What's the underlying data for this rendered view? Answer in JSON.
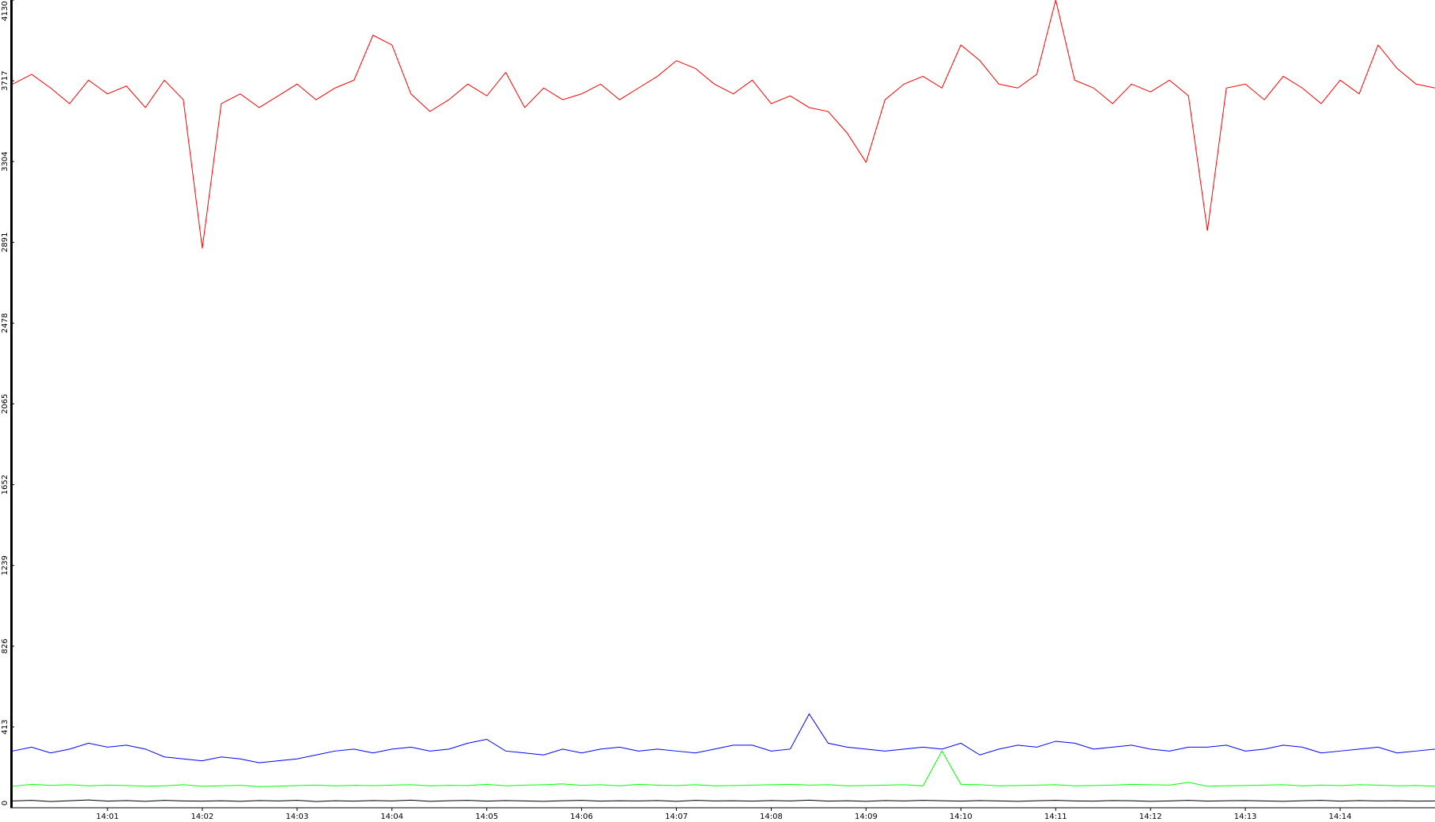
{
  "chart_data": {
    "type": "line",
    "x": [
      0,
      0.2,
      0.4,
      0.6,
      0.8,
      1,
      1.2,
      1.4,
      1.6,
      1.8,
      2,
      2.2,
      2.4,
      2.6,
      2.8,
      3,
      3.2,
      3.4,
      3.6,
      3.8,
      4,
      4.2,
      4.4,
      4.6,
      4.8,
      5,
      5.2,
      5.4,
      5.6,
      5.8,
      6,
      6.2,
      6.4,
      6.6,
      6.8,
      7,
      7.2,
      7.4,
      7.6,
      7.8,
      8,
      8.2,
      8.4,
      8.6,
      8.8,
      9,
      9.2,
      9.4,
      9.6,
      9.8,
      10,
      10.2,
      10.4,
      10.6,
      10.8,
      11,
      11.2,
      11.4,
      11.6,
      11.8,
      12,
      12.2,
      12.4,
      12.6,
      12.8,
      13,
      13.2,
      13.4,
      13.6,
      13.8,
      14,
      14.2,
      14.4,
      14.6,
      14.8,
      15
    ],
    "series": [
      {
        "color": "#ff0000",
        "values": [
          3700,
          3750,
          3680,
          3600,
          3720,
          3650,
          3690,
          3580,
          3720,
          3620,
          2860,
          3600,
          3650,
          3580,
          3640,
          3700,
          3620,
          3680,
          3720,
          3950,
          3900,
          3650,
          3560,
          3620,
          3700,
          3640,
          3760,
          3580,
          3680,
          3620,
          3650,
          3700,
          3620,
          3680,
          3740,
          3820,
          3780,
          3700,
          3650,
          3720,
          3600,
          3640,
          3580,
          3560,
          3450,
          3300,
          3620,
          3700,
          3740,
          3680,
          3900,
          3820,
          3700,
          3680,
          3750,
          4130,
          3720,
          3680,
          3600,
          3700,
          3660,
          3720,
          3640,
          2950,
          3680,
          3700,
          3620,
          3740,
          3680,
          3600,
          3720,
          3650,
          3900,
          3780,
          3700,
          3680
        ]
      },
      {
        "color": "#0000ff",
        "values": [
          290,
          310,
          280,
          300,
          330,
          310,
          320,
          300,
          260,
          250,
          240,
          260,
          250,
          230,
          240,
          250,
          270,
          290,
          300,
          280,
          300,
          310,
          290,
          300,
          330,
          350,
          290,
          280,
          270,
          300,
          280,
          300,
          310,
          290,
          300,
          290,
          280,
          300,
          320,
          320,
          290,
          300,
          480,
          330,
          310,
          300,
          290,
          300,
          310,
          300,
          330,
          270,
          300,
          320,
          310,
          340,
          330,
          300,
          310,
          320,
          300,
          290,
          310,
          310,
          320,
          290,
          300,
          320,
          310,
          280,
          290,
          300,
          310,
          280,
          290,
          300
        ]
      },
      {
        "color": "#00ff00",
        "values": [
          110,
          120,
          115,
          118,
          112,
          116,
          114,
          110,
          112,
          118,
          110,
          112,
          115,
          108,
          110,
          114,
          116,
          112,
          115,
          113,
          116,
          118,
          112,
          115,
          114,
          120,
          112,
          116,
          118,
          122,
          115,
          118,
          112,
          120,
          116,
          114,
          118,
          112,
          114,
          116,
          118,
          120,
          116,
          118,
          112,
          114,
          116,
          118,
          112,
          290,
          120,
          118,
          112,
          114,
          116,
          118,
          112,
          114,
          116,
          120,
          118,
          116,
          130,
          110,
          112,
          114,
          116,
          118,
          112,
          116,
          114,
          118,
          116,
          112,
          114,
          110
        ]
      },
      {
        "color": "#000000",
        "values": [
          35,
          38,
          32,
          36,
          40,
          34,
          37,
          33,
          38,
          35,
          34,
          36,
          33,
          37,
          35,
          38,
          32,
          36,
          34,
          37,
          35,
          39,
          33,
          36,
          38,
          34,
          37,
          35,
          33,
          36,
          38,
          34,
          36,
          35,
          37,
          33,
          38,
          35,
          36,
          34,
          37,
          35,
          39,
          34,
          36,
          33,
          37,
          35,
          38,
          36,
          34,
          37,
          35,
          33,
          36,
          38,
          35,
          34,
          37,
          36,
          33,
          35,
          38,
          34,
          36,
          37,
          35,
          33,
          36,
          38,
          34,
          37,
          35,
          36,
          34,
          35
        ]
      }
    ],
    "xlim": [
      0,
      15
    ],
    "xticks": [
      {
        "value": 1,
        "label": "14:01"
      },
      {
        "value": 2,
        "label": "14:02"
      },
      {
        "value": 3,
        "label": "14:03"
      },
      {
        "value": 4,
        "label": "14:04"
      },
      {
        "value": 5,
        "label": "14:05"
      },
      {
        "value": 6,
        "label": "14:06"
      },
      {
        "value": 7,
        "label": "14:07"
      },
      {
        "value": 8,
        "label": "14:08"
      },
      {
        "value": 9,
        "label": "14:09"
      },
      {
        "value": 10,
        "label": "14:10"
      },
      {
        "value": 11,
        "label": "14:11"
      },
      {
        "value": 12,
        "label": "14:12"
      },
      {
        "value": 13,
        "label": "14:13"
      },
      {
        "value": 14,
        "label": "14:14"
      }
    ],
    "ylim": [
      0,
      4130
    ],
    "yticks": [
      0,
      413,
      826,
      1239,
      1652,
      2065,
      2478,
      2891,
      3304,
      3717,
      4130
    ],
    "grid": false
  }
}
